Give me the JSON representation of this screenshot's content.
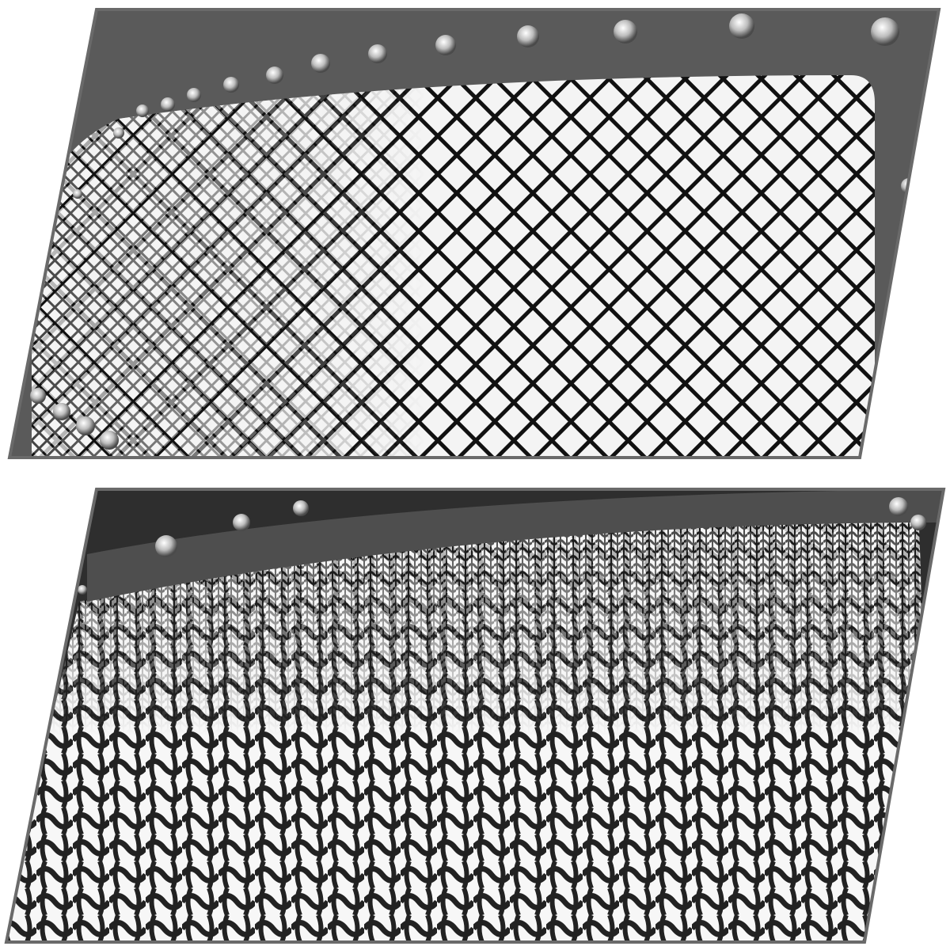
{
  "page": {
    "background": "#ffffff"
  },
  "panels": [
    {
      "subject": "grille-mesh-front-view",
      "frame_color": "#5a5a5a",
      "surround_color": "#3a3a3a",
      "mesh_color": "#111111",
      "highlight_color": "#e8e8e8",
      "hardware": "stud-icon"
    },
    {
      "subject": "grille-mesh-close-up-angle",
      "frame_color": "#5a5a5a",
      "surround_color": "#2e2e2e",
      "mesh_color": "#1a1a1a",
      "highlight_color": "#f2f2f2",
      "hardware": "stud-icon"
    }
  ]
}
